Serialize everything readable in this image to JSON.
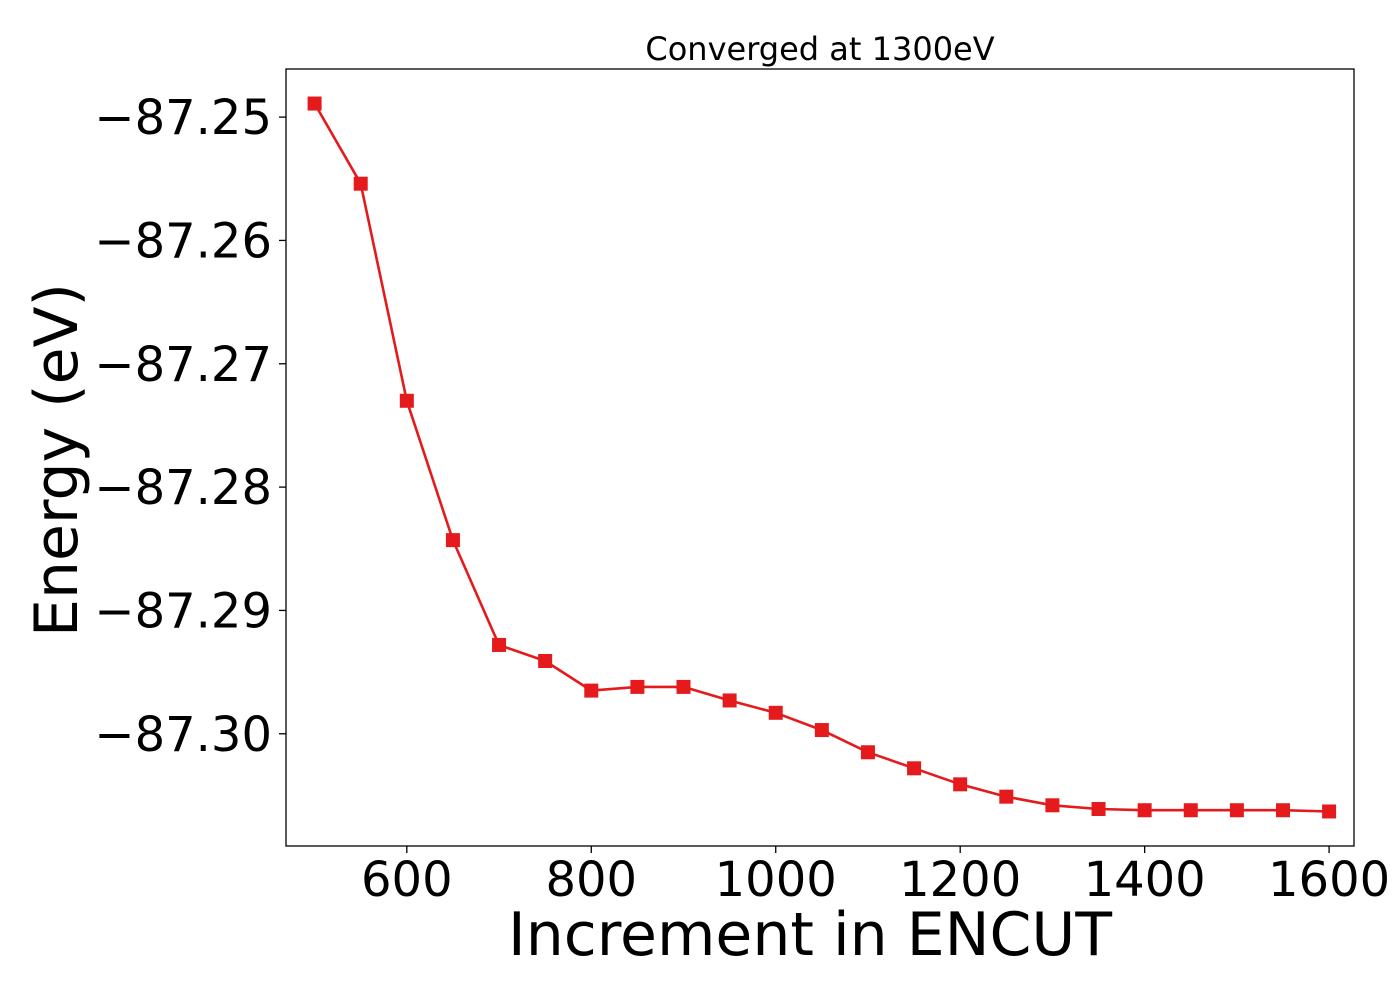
{
  "chart_data": {
    "type": "line",
    "title": "Converged at 1300eV",
    "xlabel": "Increment in ENCUT",
    "ylabel": "Energy (eV)",
    "xlim": [
      469,
      1627
    ],
    "ylim": [
      -87.3091,
      -87.2461
    ],
    "x_ticks": [
      600,
      800,
      1000,
      1200,
      1400,
      1600
    ],
    "x_tick_labels": [
      "600",
      "800",
      "1000",
      "1200",
      "1400",
      "1600"
    ],
    "y_ticks": [
      -87.25,
      -87.26,
      -87.27,
      -87.28,
      -87.29,
      -87.3
    ],
    "y_tick_labels": [
      "−87.25",
      "−87.26",
      "−87.27",
      "−87.28",
      "−87.29",
      "−87.30"
    ],
    "grid": false,
    "series": [
      {
        "color": "#e41a1c",
        "marker": "square",
        "x": [
          500,
          550,
          600,
          650,
          700,
          750,
          800,
          850,
          900,
          950,
          1000,
          1050,
          1100,
          1150,
          1200,
          1250,
          1300,
          1350,
          1400,
          1450,
          1500,
          1550,
          1600
        ],
        "y": [
          -87.2489,
          -87.2554,
          -87.273,
          -87.2843,
          -87.2928,
          -87.2941,
          -87.2965,
          -87.2962,
          -87.2962,
          -87.2973,
          -87.2983,
          -87.2997,
          -87.3015,
          -87.3028,
          -87.3041,
          -87.3051,
          -87.3058,
          -87.3061,
          -87.3062,
          -87.3062,
          -87.3062,
          -87.3062,
          -87.3063
        ]
      }
    ]
  }
}
